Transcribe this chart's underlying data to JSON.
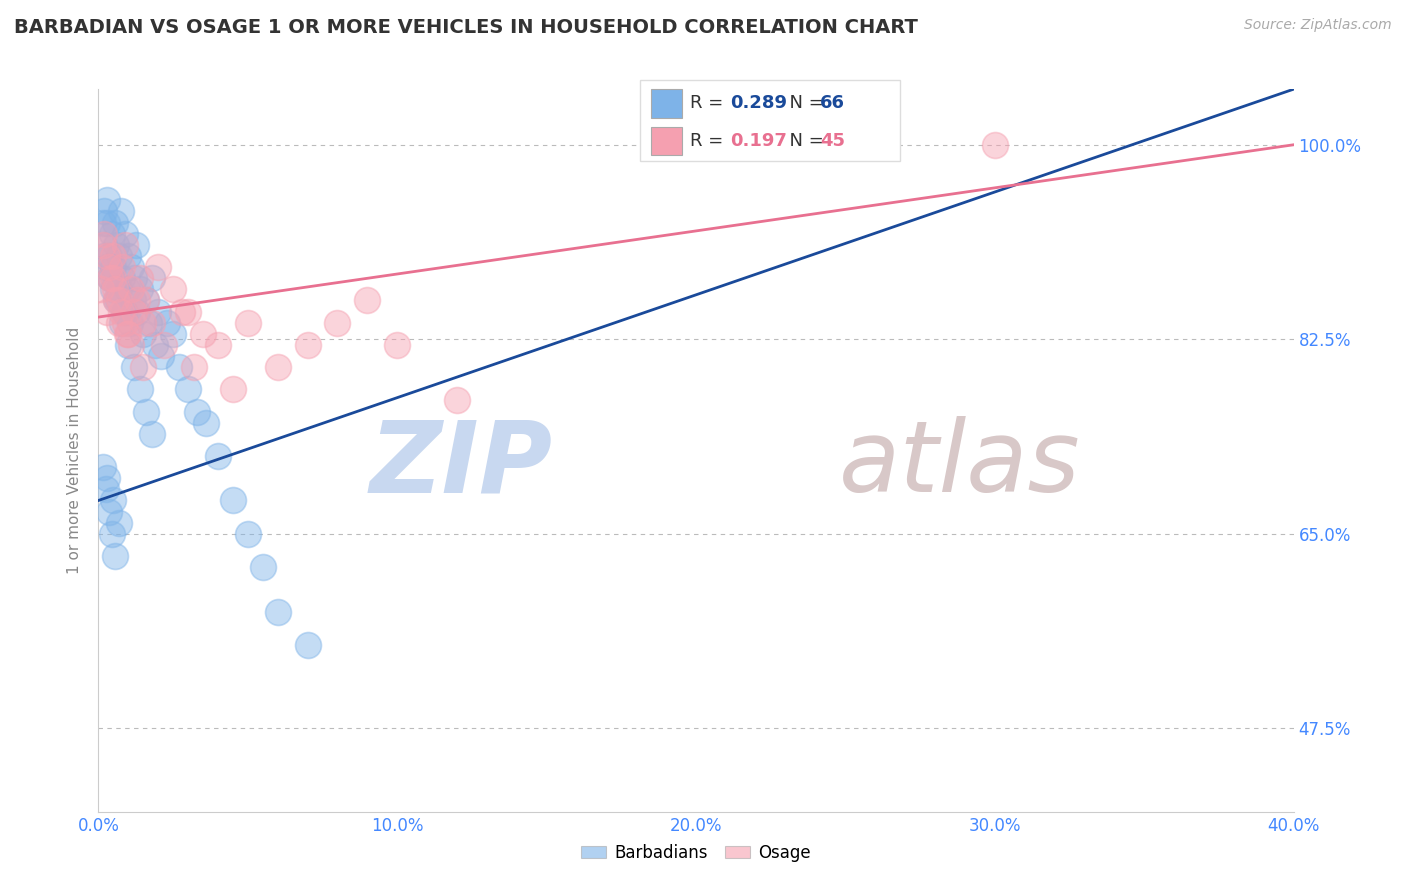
{
  "title": "BARBADIAN VS OSAGE 1 OR MORE VEHICLES IN HOUSEHOLD CORRELATION CHART",
  "source": "Source: ZipAtlas.com",
  "ylabel": "1 or more Vehicles in Household",
  "xlim": [
    0.0,
    40.0
  ],
  "ylim": [
    40.0,
    105.0
  ],
  "yticks": [
    47.5,
    65.0,
    82.5,
    100.0
  ],
  "xticks": [
    0.0,
    10.0,
    20.0,
    30.0,
    40.0
  ],
  "blue_R": 0.289,
  "blue_N": 66,
  "pink_R": 0.197,
  "pink_N": 45,
  "blue_color": "#7EB3E8",
  "pink_color": "#F5A0B0",
  "blue_line_color": "#1A4A9A",
  "pink_line_color": "#E87090",
  "axis_tick_color": "#4488FF",
  "title_color": "#333333",
  "grid_color": "#BBBBBB",
  "background_color": "#FFFFFF",
  "watermark_zip_color": "#C8D8F0",
  "watermark_atlas_color": "#D8C8C8",
  "blue_x": [
    0.15,
    0.2,
    0.25,
    0.3,
    0.35,
    0.4,
    0.45,
    0.5,
    0.55,
    0.6,
    0.65,
    0.7,
    0.75,
    0.8,
    0.85,
    0.9,
    0.95,
    1.0,
    1.05,
    1.1,
    1.15,
    1.2,
    1.25,
    1.3,
    1.4,
    1.5,
    1.6,
    1.7,
    1.8,
    1.9,
    2.0,
    2.1,
    2.3,
    2.5,
    2.7,
    3.0,
    3.3,
    3.6,
    4.0,
    4.5,
    5.0,
    5.5,
    6.0,
    0.2,
    0.4,
    0.6,
    0.8,
    1.0,
    1.2,
    1.4,
    1.6,
    1.8,
    0.3,
    0.5,
    0.7,
    0.9,
    0.3,
    0.5,
    0.7,
    0.2,
    7.0,
    0.15,
    0.25,
    0.35,
    0.45,
    0.55
  ],
  "blue_y": [
    93,
    91,
    89,
    95,
    90,
    88,
    92,
    87,
    93,
    91,
    86,
    90,
    94,
    88,
    85,
    92,
    87,
    90,
    84,
    89,
    86,
    88,
    91,
    85,
    87,
    83,
    86,
    84,
    88,
    82,
    85,
    81,
    84,
    83,
    80,
    78,
    76,
    75,
    72,
    68,
    65,
    62,
    58,
    90,
    88,
    86,
    84,
    82,
    80,
    78,
    76,
    74,
    93,
    89,
    87,
    85,
    70,
    68,
    66,
    94,
    55,
    71,
    69,
    67,
    65,
    63
  ],
  "pink_x": [
    0.1,
    0.2,
    0.3,
    0.4,
    0.5,
    0.6,
    0.7,
    0.8,
    0.9,
    1.0,
    1.1,
    1.2,
    1.4,
    1.6,
    1.8,
    2.0,
    2.5,
    3.0,
    3.5,
    4.0,
    5.0,
    6.0,
    7.0,
    8.0,
    9.0,
    10.0,
    0.3,
    0.5,
    0.7,
    0.9,
    1.1,
    1.3,
    1.5,
    2.2,
    3.2,
    4.5,
    0.15,
    0.35,
    0.55,
    0.75,
    0.95,
    1.5,
    2.8,
    30.0,
    12.0
  ],
  "pink_y": [
    87,
    92,
    85,
    88,
    90,
    86,
    84,
    89,
    91,
    83,
    87,
    85,
    88,
    86,
    84,
    89,
    87,
    85,
    83,
    82,
    84,
    80,
    82,
    84,
    86,
    82,
    90,
    88,
    86,
    84,
    82,
    86,
    84,
    82,
    80,
    78,
    91,
    89,
    87,
    85,
    83,
    80,
    85,
    100,
    77
  ],
  "blue_trendline_x": [
    0.0,
    40.0
  ],
  "blue_trendline_y": [
    68.0,
    105.0
  ],
  "pink_trendline_x": [
    0.0,
    40.0
  ],
  "pink_trendline_y": [
    84.5,
    100.0
  ]
}
